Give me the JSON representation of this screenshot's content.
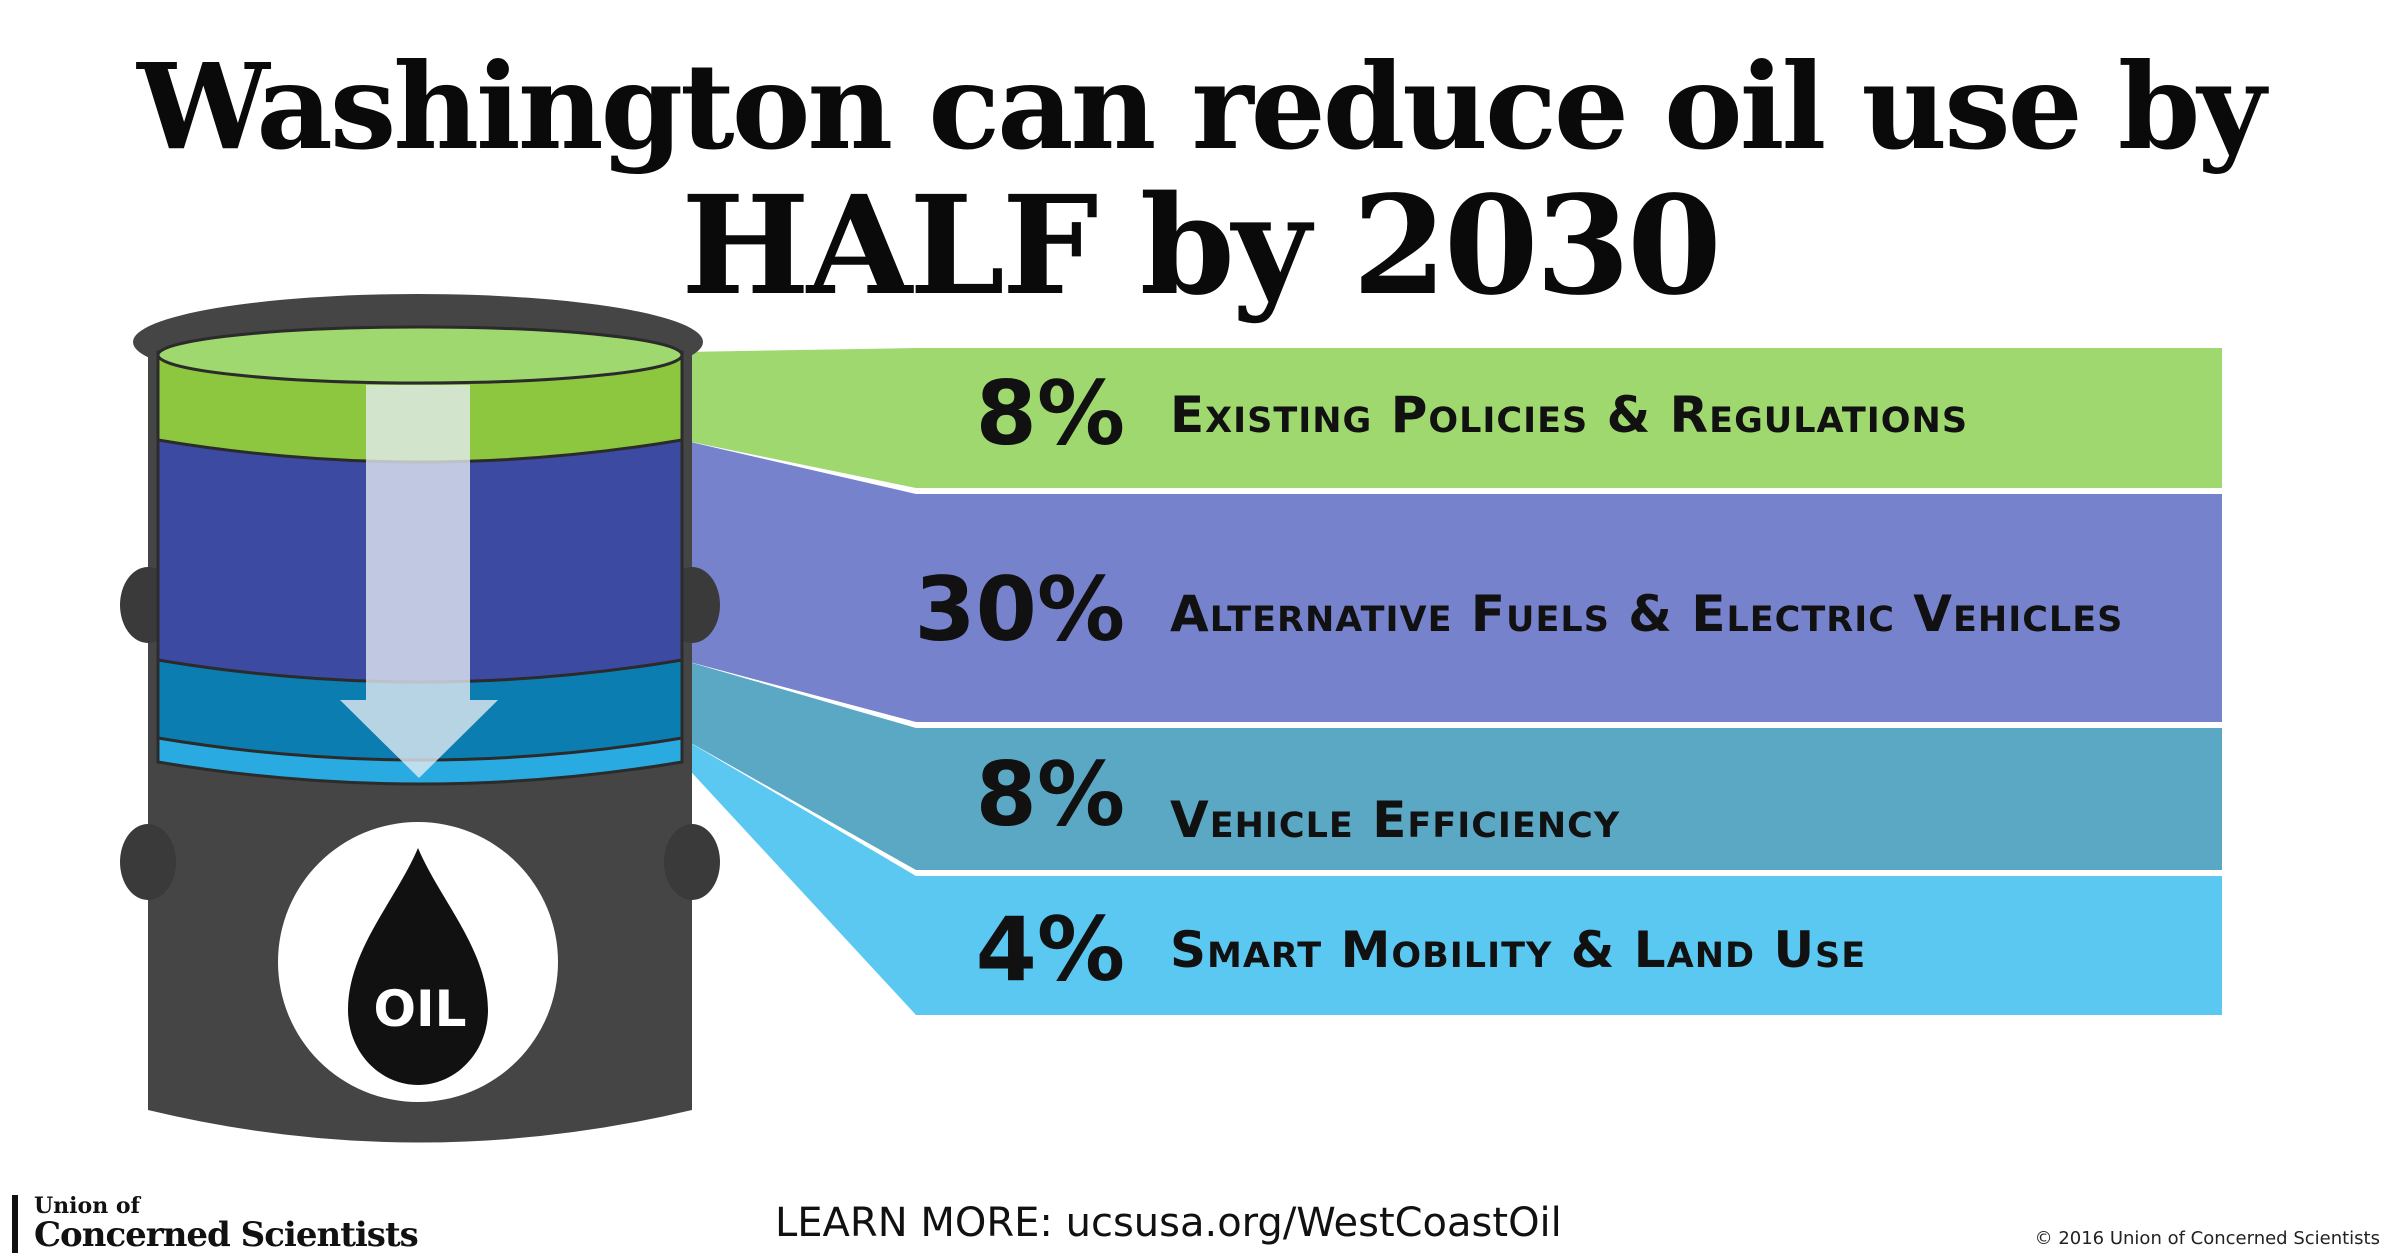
{
  "title_line1": "Washington can reduce oil use by",
  "title_line2": "HALF by 2030",
  "barrel_label": "OIL",
  "chart_data": {
    "type": "bar",
    "title": "Washington can reduce oil use by HALF by 2030",
    "categories": [
      "Existing Policies & Regulations",
      "Alternative Fuels & Electric Vehicles",
      "Vehicle Efficiency",
      "Smart Mobility & Land Use"
    ],
    "values": [
      8,
      30,
      8,
      4
    ],
    "value_labels": [
      "8%",
      "30%",
      "8%",
      "4%"
    ],
    "colors": [
      "#9fd86e",
      "#7782cc",
      "#5aa8c4",
      "#5bc8f2"
    ],
    "barrel_layer_colors": [
      "#8dc63f",
      "#3c4ba1",
      "#0b7db0",
      "#29abe2"
    ]
  },
  "footer": {
    "logo_small": "Union of",
    "logo_big": "Concerned Scientists",
    "learn_more": "LEARN MORE:  ucsusa.org/WestCoastOil",
    "copyright": "© 2016 Union of Concerned Scientists"
  }
}
